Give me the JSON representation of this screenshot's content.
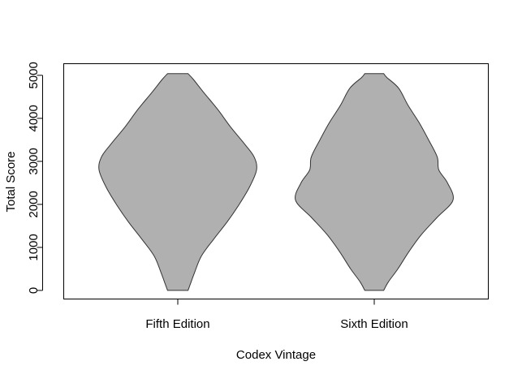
{
  "chart_data": {
    "type": "violin",
    "title": "",
    "xlabel": "Codex Vintage",
    "ylabel": "Total Score",
    "categories": [
      "Fifth Edition",
      "Sixth Edition"
    ],
    "ylim": [
      -200,
      5270
    ],
    "yticks": [
      0,
      1000,
      2000,
      3000,
      4000,
      5000
    ],
    "grid": false,
    "colors": {
      "fill": "#b0b0b0",
      "stroke": "#333333",
      "axis": "#000000"
    },
    "series": [
      {
        "category": "Fifth Edition",
        "min": 0,
        "max": 5040,
        "density": [
          [
            0,
            0.13
          ],
          [
            150,
            0.16
          ],
          [
            400,
            0.21
          ],
          [
            800,
            0.3
          ],
          [
            1200,
            0.46
          ],
          [
            1600,
            0.63
          ],
          [
            2000,
            0.78
          ],
          [
            2400,
            0.91
          ],
          [
            2800,
            1.0
          ],
          [
            3100,
            0.97
          ],
          [
            3400,
            0.85
          ],
          [
            3800,
            0.67
          ],
          [
            4200,
            0.51
          ],
          [
            4600,
            0.33
          ],
          [
            4900,
            0.2
          ],
          [
            5040,
            0.13
          ]
        ]
      },
      {
        "category": "Sixth Edition",
        "min": 0,
        "max": 5040,
        "density": [
          [
            0,
            0.12
          ],
          [
            200,
            0.18
          ],
          [
            500,
            0.3
          ],
          [
            900,
            0.44
          ],
          [
            1300,
            0.6
          ],
          [
            1700,
            0.8
          ],
          [
            2100,
            1.0
          ],
          [
            2500,
            0.93
          ],
          [
            2800,
            0.82
          ],
          [
            3100,
            0.8
          ],
          [
            3500,
            0.69
          ],
          [
            3900,
            0.57
          ],
          [
            4300,
            0.43
          ],
          [
            4700,
            0.31
          ],
          [
            4950,
            0.16
          ],
          [
            5040,
            0.12
          ]
        ]
      }
    ]
  }
}
